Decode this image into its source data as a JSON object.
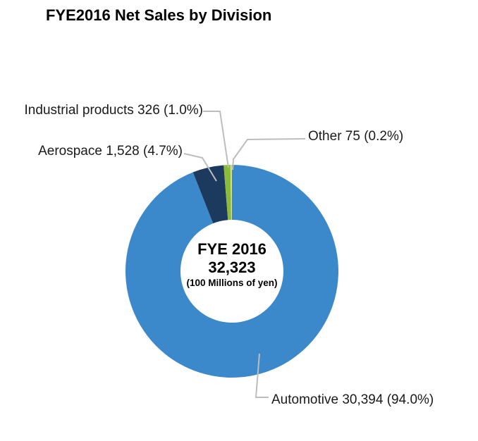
{
  "chart_data": {
    "type": "pie",
    "subtype": "donut",
    "title": "FYE2016 Net Sales by Division",
    "unit": "100 Millions of yen",
    "total": 32323,
    "total_display": "32,323",
    "direction": "clockwise",
    "start_angle_deg": 0,
    "center_label": {
      "line1": "FYE 2016",
      "line2": "32,323",
      "line3": "(100 Millions of yen)"
    },
    "leader_line_color": "#BDBDBD",
    "slices": [
      {
        "name": "Automotive",
        "value": 30394,
        "value_display": "30,394",
        "pct": 94.0,
        "color": "#3B89CA",
        "label": "Automotive 30,394 (94.0%)"
      },
      {
        "name": "Aerospace",
        "value": 1528,
        "value_display": "1,528",
        "pct": 4.7,
        "color": "#1C3A5E",
        "label": "Aerospace 1,528 (4.7%)"
      },
      {
        "name": "Industrial products",
        "value": 326,
        "value_display": "326",
        "pct": 1.0,
        "color": "#8CBB3C",
        "label": "Industrial products 326 (1.0%)"
      },
      {
        "name": "Other",
        "value": 75,
        "value_display": "75",
        "pct": 0.2,
        "color": "#CBDD9E",
        "label": "Other 75 (0.2%)"
      }
    ]
  }
}
